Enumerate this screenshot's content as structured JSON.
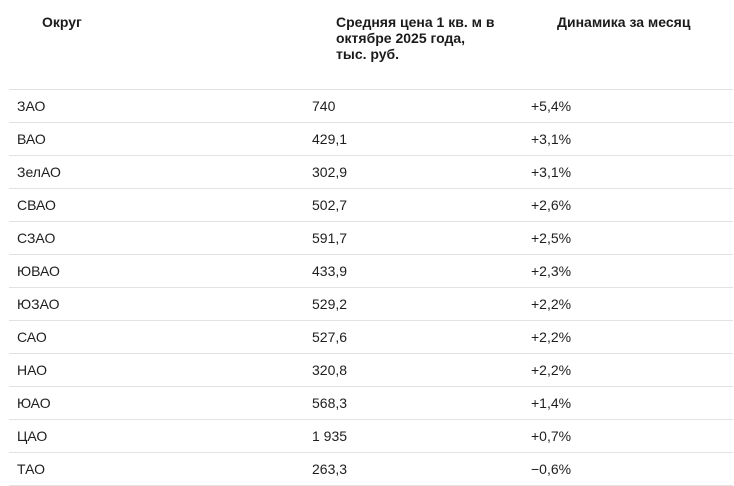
{
  "headers": {
    "district": "Округ",
    "price": "Средняя цена 1 кв. м в октябре 2025 года, тыс. руб.",
    "dynamics": "Динамика за месяц"
  },
  "rows": [
    {
      "district": "ЗАО",
      "price": "740",
      "dynamics": "+5,4%"
    },
    {
      "district": "ВАО",
      "price": "429,1",
      "dynamics": "+3,1%"
    },
    {
      "district": "ЗелАО",
      "price": "302,9",
      "dynamics": "+3,1%"
    },
    {
      "district": "СВАО",
      "price": "502,7",
      "dynamics": "+2,6%"
    },
    {
      "district": "СЗАО",
      "price": "591,7",
      "dynamics": "+2,5%"
    },
    {
      "district": "ЮВАО",
      "price": "433,9",
      "dynamics": "+2,3%"
    },
    {
      "district": "ЮЗАО",
      "price": "529,2",
      "dynamics": "+2,2%"
    },
    {
      "district": "САО",
      "price": "527,6",
      "dynamics": "+2,2%"
    },
    {
      "district": "НАО",
      "price": "320,8",
      "dynamics": "+2,2%"
    },
    {
      "district": "ЮАО",
      "price": "568,3",
      "dynamics": "+1,4%"
    },
    {
      "district": "ЦАО",
      "price": "1 935",
      "dynamics": "+0,7%"
    },
    {
      "district": "ТАО",
      "price": "263,3",
      "dynamics": "−0,6%"
    }
  ]
}
